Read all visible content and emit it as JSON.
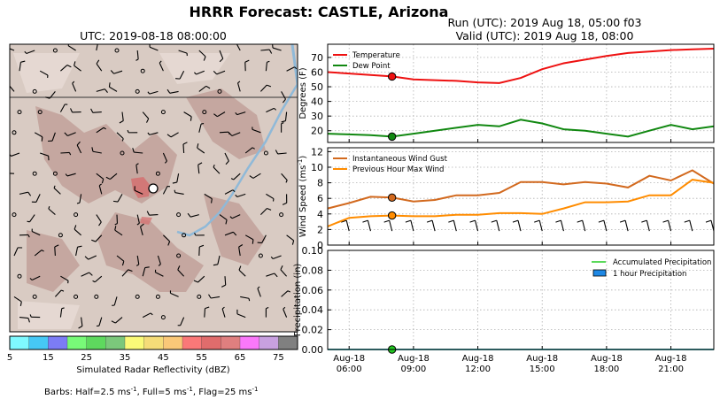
{
  "figure": {
    "title": "HRRR Forecast: CASTLE, Arizona",
    "run_label": "Run (UTC): 2019 Aug 18, 05:00 f03",
    "valid_label": "Valid (UTC): 2019 Aug 18, 08:00"
  },
  "map": {
    "title": "UTC: 2019-08-18 08:00:00",
    "colorbar_label": "Simulated Radar Reflectivity (dBZ)",
    "colorbar_ticks": [
      "5",
      "15",
      "25",
      "35",
      "45",
      "55",
      "65",
      "75"
    ],
    "colorbar_colors": [
      "#7ff9ff",
      "#46c8f5",
      "#7c7cf5",
      "#78fa78",
      "#5ed95e",
      "#7bc87b",
      "#fafa78",
      "#f5dc78",
      "#fac878",
      "#fa7878",
      "#e06c6c",
      "#df7f7f",
      "#fa78fa",
      "#c8a0e0",
      "#808080"
    ],
    "barbs_note": "Barbs: Half=2.5 ms",
    "barbs_sup1": "-1",
    "barbs_mid": ", Full=5 ms",
    "barbs_sup2": "-1",
    "barbs_mid2": ", Flag=25 ms",
    "barbs_sup3": "-1"
  },
  "chart_data": [
    {
      "type": "line",
      "ylabel": "Degrees (F)",
      "ylim": [
        12,
        79
      ],
      "yticks": [
        "20",
        "30",
        "40",
        "50",
        "60",
        "70"
      ],
      "grid": true,
      "legend": "top-left",
      "x_hours": [
        5,
        6,
        7,
        8,
        9,
        10,
        11,
        12,
        13,
        14,
        15,
        16,
        17,
        18,
        19,
        20,
        21,
        22,
        23
      ],
      "series": [
        {
          "name": "Temperature",
          "color": "#ee1111",
          "values": [
            60,
            59,
            58,
            57,
            55,
            54.5,
            54,
            53,
            52.5,
            56,
            62,
            66,
            68.5,
            71,
            73,
            74,
            75,
            75.5,
            76
          ]
        },
        {
          "name": "Dew Point",
          "color": "#118811",
          "values": [
            18,
            17.5,
            17,
            16,
            18,
            20,
            22,
            24,
            23,
            27.5,
            25,
            21,
            20,
            18,
            16,
            20,
            24,
            21,
            23
          ]
        }
      ],
      "marker": {
        "hour": 8,
        "values": [
          57,
          16
        ]
      }
    },
    {
      "type": "line",
      "ylabel": "Wind Speed (ms",
      "ylabel_sup": "-1",
      "ylabel_end": ")",
      "ylim": [
        0,
        12.5
      ],
      "yticks": [
        "0",
        "2",
        "4",
        "6",
        "8",
        "10",
        "12"
      ],
      "grid": true,
      "legend": "top-left",
      "x_hours": [
        5,
        6,
        7,
        8,
        9,
        10,
        11,
        12,
        13,
        14,
        15,
        16,
        17,
        18,
        19,
        20,
        21,
        22,
        23
      ],
      "series": [
        {
          "name": "Instantaneous Wind Gust",
          "color": "#d2691e",
          "values": [
            4.7,
            5.4,
            6.2,
            6.1,
            5.6,
            5.8,
            6.4,
            6.4,
            6.7,
            8.1,
            8.1,
            7.8,
            8.1,
            7.9,
            7.4,
            8.9,
            8.3,
            9.6,
            7.9
          ]
        },
        {
          "name": "Previous Hour Max Wind",
          "color": "#ff8c00",
          "values": [
            2.4,
            3.5,
            3.7,
            3.8,
            3.7,
            3.7,
            3.9,
            3.9,
            4.1,
            4.1,
            4.0,
            4.7,
            5.5,
            5.5,
            5.6,
            6.4,
            6.4,
            8.4,
            8.0
          ]
        }
      ],
      "marker": {
        "hour": 8,
        "values": [
          6.1,
          3.8
        ]
      }
    },
    {
      "type": "line",
      "ylabel": "Precipitation (in)",
      "ylim": [
        0,
        0.1
      ],
      "yticks": [
        "0.00",
        "0.02",
        "0.04",
        "0.06",
        "0.08",
        "0.10"
      ],
      "xticks": [
        {
          "hour": 6,
          "line1": "Aug-18",
          "line2": "06:00"
        },
        {
          "hour": 9,
          "line1": "Aug-18",
          "line2": "09:00"
        },
        {
          "hour": 12,
          "line1": "Aug-18",
          "line2": "12:00"
        },
        {
          "hour": 15,
          "line1": "Aug-18",
          "line2": "15:00"
        },
        {
          "hour": 18,
          "line1": "Aug-18",
          "line2": "18:00"
        },
        {
          "hour": 21,
          "line1": "Aug-18",
          "line2": "21:00"
        }
      ],
      "grid": true,
      "legend": "top-right",
      "x_hours": [
        5,
        6,
        7,
        8,
        9,
        10,
        11,
        12,
        13,
        14,
        15,
        16,
        17,
        18,
        19,
        20,
        21,
        22,
        23
      ],
      "series": [
        {
          "name": "Accumulated Precipitation",
          "color": "#22cc22",
          "values": [
            0,
            0,
            0,
            0,
            0,
            0,
            0,
            0,
            0,
            0,
            0,
            0,
            0,
            0,
            0,
            0,
            0,
            0,
            0
          ]
        },
        {
          "name": "1 hour Precipitation",
          "color": "#1e88e5",
          "values": [
            0,
            0,
            0,
            0,
            0,
            0,
            0,
            0,
            0,
            0,
            0,
            0,
            0,
            0,
            0,
            0,
            0,
            0,
            0
          ]
        }
      ],
      "marker": {
        "hour": 8,
        "values": [
          0
        ]
      }
    }
  ]
}
